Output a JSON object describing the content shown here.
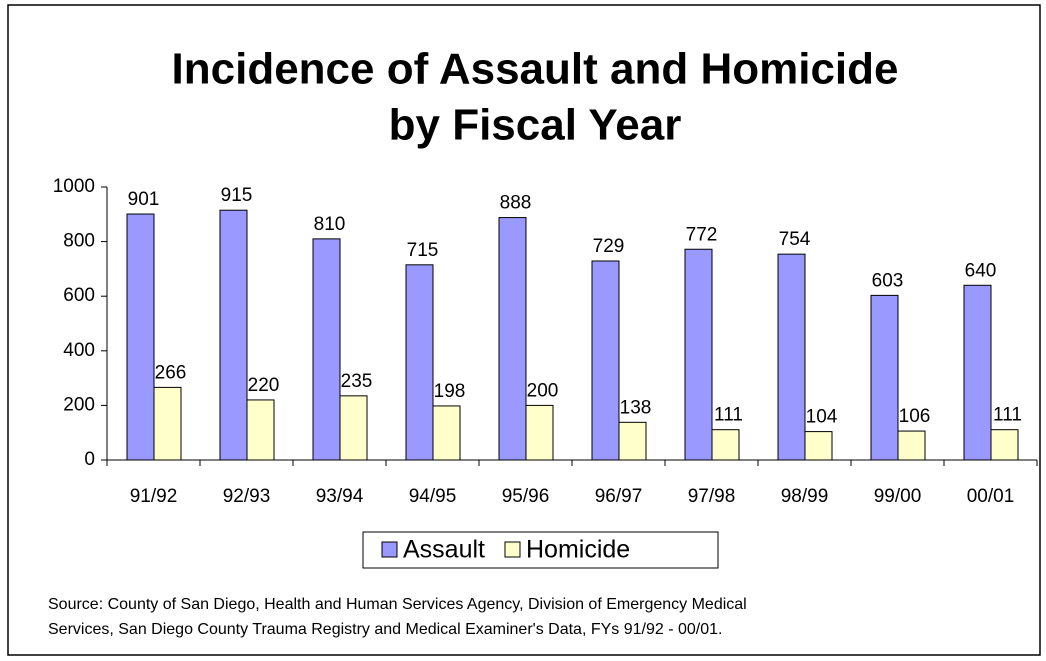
{
  "chart_data": {
    "type": "bar",
    "title": [
      "Incidence of Assault and Homicide",
      "by Fiscal Year"
    ],
    "categories": [
      "91/92",
      "92/93",
      "93/94",
      "94/95",
      "95/96",
      "96/97",
      "97/98",
      "98/99",
      "99/00",
      "00/01"
    ],
    "series": [
      {
        "name": "Assault",
        "color": "#9999ff",
        "values": [
          901,
          915,
          810,
          715,
          888,
          729,
          772,
          754,
          603,
          640
        ]
      },
      {
        "name": "Homicide",
        "color": "#ffffcc",
        "values": [
          266,
          220,
          235,
          198,
          200,
          138,
          111,
          104,
          106,
          111
        ]
      }
    ],
    "ylim": [
      0,
      1000
    ],
    "yticks": [
      0,
      200,
      400,
      600,
      800,
      1000
    ],
    "grid": false,
    "legend": "bottom",
    "source": [
      "Source: County of San Diego, Health and Human Services Agency, Division of Emergency Medical",
      "Services, San Diego County Trauma Registry and Medical Examiner's Data, FYs 91/92 - 00/01."
    ]
  }
}
